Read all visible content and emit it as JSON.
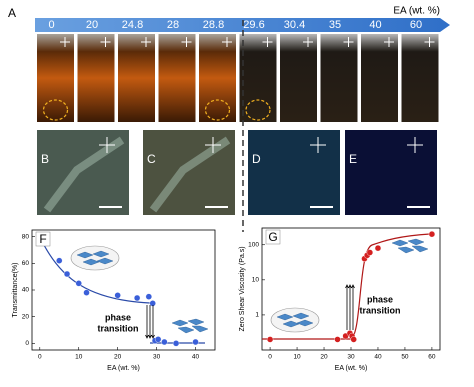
{
  "panel_a": {
    "label": "A",
    "axis_label": "EA (wt. %)",
    "concentrations": [
      0,
      20,
      24.8,
      28,
      28.8,
      29.6,
      30.4,
      35,
      40,
      60
    ]
  },
  "micrographs": [
    {
      "label": "B"
    },
    {
      "label": "C"
    },
    {
      "label": "D"
    },
    {
      "label": "E"
    }
  ],
  "chart_data": [
    {
      "type": "scatter",
      "panel": "F",
      "xlabel": "EA (wt. %)",
      "ylabel": "Transmittance(%)",
      "color": "#3a5fd9",
      "x": [
        0,
        5,
        7,
        10,
        12,
        20,
        25,
        28,
        29,
        29.6,
        30.4,
        32,
        35,
        40
      ],
      "values": [
        80,
        62,
        52,
        45,
        38,
        36,
        34,
        35,
        30,
        2,
        3,
        1,
        0,
        1
      ],
      "xlim": [
        -2,
        45
      ],
      "ylim": [
        -5,
        85
      ],
      "xticks": [
        0,
        10,
        20,
        30,
        40
      ],
      "yticks": [
        0,
        20,
        40,
        60,
        80
      ],
      "annotation": [
        "phase",
        "transition"
      ]
    },
    {
      "type": "scatter",
      "panel": "G",
      "xlabel": "EA (wt. %)",
      "ylabel": "Zero Shear Viscosity (Pa.s)",
      "color": "#d42020",
      "log_y": true,
      "x": [
        0,
        25,
        28,
        29.6,
        30.4,
        31,
        35,
        36,
        37,
        40,
        60
      ],
      "values": [
        0.2,
        0.2,
        0.25,
        0.3,
        0.25,
        0.2,
        40,
        50,
        60,
        80,
        200
      ],
      "xlim": [
        -3,
        63
      ],
      "ylim": [
        0.1,
        300
      ],
      "xticks": [
        0,
        10,
        20,
        30,
        40,
        50,
        60
      ],
      "yticks": [
        1,
        10,
        100
      ],
      "annotation": [
        "phase",
        "transition"
      ]
    }
  ]
}
